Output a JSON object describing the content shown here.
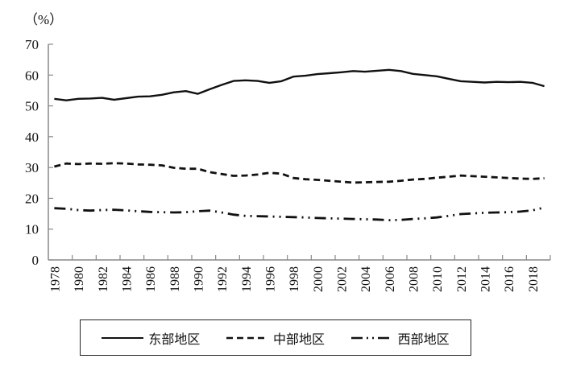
{
  "unit_label": "（%）",
  "legend": {
    "items": [
      {
        "label": "东部地区",
        "dash": "solid"
      },
      {
        "label": "中部地区",
        "dash": "dashed"
      },
      {
        "label": "西部地区",
        "dash": "dashdot"
      }
    ]
  },
  "chart_data": {
    "type": "line",
    "title": "",
    "xlabel": "",
    "ylabel": "（%）",
    "ylim": [
      0,
      70
    ],
    "yticks": [
      0,
      10,
      20,
      30,
      40,
      50,
      60,
      70
    ],
    "xtick_labels": [
      "1978",
      "1980",
      "1982",
      "1984",
      "1986",
      "1988",
      "1990",
      "1992",
      "1994",
      "1996",
      "1998",
      "2000",
      "2002",
      "2004",
      "2006",
      "2008",
      "2010",
      "2012",
      "2014",
      "2016",
      "2018"
    ],
    "grid": false,
    "legend_position": "bottom",
    "x": [
      1978,
      1979,
      1980,
      1981,
      1982,
      1983,
      1984,
      1985,
      1986,
      1987,
      1988,
      1989,
      1990,
      1991,
      1992,
      1993,
      1994,
      1995,
      1996,
      1997,
      1998,
      1999,
      2000,
      2001,
      2002,
      2003,
      2004,
      2005,
      2006,
      2007,
      2008,
      2009,
      2010,
      2011,
      2012,
      2013,
      2014,
      2015,
      2016,
      2017,
      2018,
      2019
    ],
    "series": [
      {
        "name": "东部地区",
        "style": "solid",
        "values": [
          52.3,
          51.8,
          52.3,
          52.4,
          52.6,
          52.0,
          52.5,
          53.0,
          53.1,
          53.6,
          54.4,
          54.8,
          53.9,
          55.4,
          56.8,
          58.1,
          58.3,
          58.1,
          57.5,
          58.0,
          59.5,
          59.8,
          60.3,
          60.6,
          60.9,
          61.3,
          61.1,
          61.4,
          61.7,
          61.3,
          60.4,
          60.0,
          59.6,
          58.8,
          58.0,
          57.8,
          57.6,
          57.8,
          57.7,
          57.8,
          57.5,
          56.4
        ]
      },
      {
        "name": "中部地区",
        "style": "dashed",
        "values": [
          30.3,
          31.3,
          31.1,
          31.3,
          31.2,
          31.4,
          31.3,
          31.0,
          30.9,
          30.7,
          29.9,
          29.6,
          29.6,
          28.5,
          27.9,
          27.3,
          27.4,
          27.7,
          28.3,
          28.0,
          26.6,
          26.2,
          26.0,
          25.7,
          25.4,
          25.1,
          25.2,
          25.3,
          25.4,
          25.7,
          26.1,
          26.3,
          26.7,
          27.0,
          27.4,
          27.2,
          27.0,
          26.8,
          26.6,
          26.4,
          26.3,
          26.5
        ]
      },
      {
        "name": "西部地区",
        "style": "dashdot",
        "values": [
          16.8,
          16.6,
          16.2,
          16.0,
          16.2,
          16.3,
          16.1,
          15.8,
          15.6,
          15.5,
          15.4,
          15.5,
          15.8,
          16.0,
          15.4,
          14.7,
          14.3,
          14.2,
          14.1,
          14.0,
          13.9,
          13.8,
          13.6,
          13.5,
          13.4,
          13.3,
          13.2,
          13.1,
          12.9,
          13.0,
          13.3,
          13.5,
          13.8,
          14.3,
          14.9,
          15.1,
          15.3,
          15.4,
          15.5,
          15.7,
          16.1,
          17.0
        ]
      }
    ]
  }
}
